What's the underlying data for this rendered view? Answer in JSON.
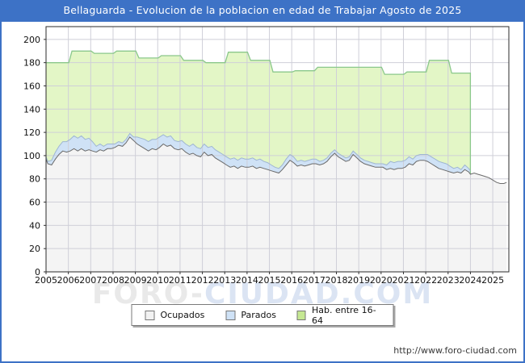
{
  "frame": {
    "title": "Bellaguarda - Evolucion de la poblacion en edad de Trabajar Agosto de 2025",
    "url": "http://www.foro-ciudad.com",
    "watermark_part1": "FORO-",
    "watermark_part2": "CIUDAD.COM",
    "titlebar_bg": "#3d72c6",
    "frame_border": "#3d72c6"
  },
  "legend": {
    "items": [
      {
        "label": "Ocupados",
        "swatch": "#f2f2f2"
      },
      {
        "label": "Parados",
        "swatch": "#cfe2f6"
      },
      {
        "label": "Hab. entre 16-64",
        "swatch": "#c6e893"
      }
    ]
  },
  "chart_data": {
    "type": "area",
    "title": "Bellaguarda - Evolucion de la poblacion en edad de Trabajar Agosto de 2025",
    "xlabel": "",
    "ylabel": "",
    "grid": true,
    "legend_position": "bottom",
    "x_ticks": [
      2005,
      2006,
      2007,
      2008,
      2009,
      2010,
      2011,
      2012,
      2013,
      2014,
      2015,
      2016,
      2017,
      2018,
      2019,
      2020,
      2021,
      2022,
      2023,
      2024,
      2025
    ],
    "y_ticks": [
      0,
      20,
      40,
      60,
      80,
      100,
      120,
      140,
      160,
      180,
      200
    ],
    "x_range": [
      2005,
      2025.72
    ],
    "y_range": [
      0,
      211
    ],
    "colors": {
      "hab_fill": "#e3f6c6",
      "hab_line": "#8bc88b",
      "parados_fill": "#cfe2f6",
      "parados_line": "#9fb6d2",
      "ocupados_fill": "#f4f4f4",
      "ocupados_line": "#6b6b6b",
      "gridline": "#cfcfd8",
      "plot_border": "#2b2b2b"
    },
    "series": [
      {
        "name": "Hab. entre 16-64",
        "style": "step_area_annual",
        "annual_steps": [
          [
            2005,
            180
          ],
          [
            2006,
            190
          ],
          [
            2007,
            188
          ],
          [
            2008,
            190
          ],
          [
            2009,
            184
          ],
          [
            2010,
            186
          ],
          [
            2011,
            182
          ],
          [
            2012,
            180
          ],
          [
            2013,
            189
          ],
          [
            2014,
            182
          ],
          [
            2015,
            172
          ],
          [
            2016,
            173
          ],
          [
            2017,
            176
          ],
          [
            2018,
            176
          ],
          [
            2019,
            176
          ],
          [
            2020,
            170
          ],
          [
            2021,
            172
          ],
          [
            2022,
            182
          ],
          [
            2023,
            171
          ]
        ],
        "ends_at": 2024.0,
        "end_drop_to": 84
      },
      {
        "name": "Parados",
        "style": "stacked_band_top",
        "points": [
          [
            2005.0,
            99
          ],
          [
            2005.08,
            95
          ],
          [
            2005.25,
            96
          ],
          [
            2005.42,
            103
          ],
          [
            2005.58,
            108
          ],
          [
            2005.75,
            112
          ],
          [
            2005.92,
            112
          ],
          [
            2006.08,
            114
          ],
          [
            2006.25,
            117
          ],
          [
            2006.42,
            115
          ],
          [
            2006.58,
            117
          ],
          [
            2006.75,
            114
          ],
          [
            2006.92,
            115
          ],
          [
            2007.08,
            112
          ],
          [
            2007.25,
            108
          ],
          [
            2007.42,
            110
          ],
          [
            2007.58,
            108
          ],
          [
            2007.75,
            110
          ],
          [
            2007.92,
            110
          ],
          [
            2008.08,
            110
          ],
          [
            2008.25,
            112
          ],
          [
            2008.42,
            111
          ],
          [
            2008.58,
            114
          ],
          [
            2008.75,
            119
          ],
          [
            2008.92,
            116
          ],
          [
            2009.08,
            116
          ],
          [
            2009.25,
            115
          ],
          [
            2009.42,
            114
          ],
          [
            2009.58,
            112
          ],
          [
            2009.75,
            114
          ],
          [
            2009.92,
            114
          ],
          [
            2010.08,
            116
          ],
          [
            2010.25,
            118
          ],
          [
            2010.42,
            116
          ],
          [
            2010.58,
            117
          ],
          [
            2010.75,
            113
          ],
          [
            2010.92,
            112
          ],
          [
            2011.08,
            113
          ],
          [
            2011.25,
            110
          ],
          [
            2011.42,
            108
          ],
          [
            2011.58,
            110
          ],
          [
            2011.75,
            107
          ],
          [
            2011.92,
            106
          ],
          [
            2012.08,
            110
          ],
          [
            2012.25,
            107
          ],
          [
            2012.42,
            108
          ],
          [
            2012.58,
            105
          ],
          [
            2012.75,
            103
          ],
          [
            2012.92,
            101
          ],
          [
            2013.08,
            99
          ],
          [
            2013.25,
            97
          ],
          [
            2013.42,
            98
          ],
          [
            2013.58,
            96
          ],
          [
            2013.75,
            98
          ],
          [
            2013.92,
            97
          ],
          [
            2014.08,
            97
          ],
          [
            2014.25,
            98
          ],
          [
            2014.42,
            96
          ],
          [
            2014.58,
            97
          ],
          [
            2014.75,
            95
          ],
          [
            2014.92,
            94
          ],
          [
            2015.08,
            92
          ],
          [
            2015.25,
            90
          ],
          [
            2015.42,
            89
          ],
          [
            2015.58,
            92
          ],
          [
            2015.75,
            97
          ],
          [
            2015.92,
            101
          ],
          [
            2016.08,
            99
          ],
          [
            2016.25,
            95
          ],
          [
            2016.42,
            96
          ],
          [
            2016.58,
            95
          ],
          [
            2016.75,
            96
          ],
          [
            2016.92,
            97
          ],
          [
            2017.08,
            97
          ],
          [
            2017.25,
            95
          ],
          [
            2017.42,
            96
          ],
          [
            2017.58,
            98
          ],
          [
            2017.75,
            102
          ],
          [
            2017.92,
            105
          ],
          [
            2018.08,
            102
          ],
          [
            2018.25,
            100
          ],
          [
            2018.42,
            98
          ],
          [
            2018.58,
            99
          ],
          [
            2018.75,
            104
          ],
          [
            2018.92,
            101
          ],
          [
            2019.08,
            98
          ],
          [
            2019.25,
            96
          ],
          [
            2019.42,
            95
          ],
          [
            2019.58,
            94
          ],
          [
            2019.75,
            93
          ],
          [
            2019.92,
            93
          ],
          [
            2020.08,
            93
          ],
          [
            2020.25,
            92
          ],
          [
            2020.42,
            95
          ],
          [
            2020.58,
            94
          ],
          [
            2020.75,
            95
          ],
          [
            2020.92,
            95
          ],
          [
            2021.08,
            96
          ],
          [
            2021.25,
            99
          ],
          [
            2021.42,
            97
          ],
          [
            2021.58,
            100
          ],
          [
            2021.75,
            101
          ],
          [
            2021.92,
            101
          ],
          [
            2022.08,
            101
          ],
          [
            2022.25,
            99
          ],
          [
            2022.42,
            97
          ],
          [
            2022.58,
            95
          ],
          [
            2022.75,
            94
          ],
          [
            2022.92,
            93
          ],
          [
            2023.08,
            91
          ],
          [
            2023.25,
            89
          ],
          [
            2023.42,
            90
          ],
          [
            2023.58,
            88
          ],
          [
            2023.75,
            92
          ],
          [
            2023.92,
            89
          ],
          [
            2024.0,
            87
          ]
        ]
      },
      {
        "name": "Ocupados",
        "style": "area_with_line",
        "points": [
          [
            2005.0,
            97
          ],
          [
            2005.08,
            93
          ],
          [
            2005.25,
            92
          ],
          [
            2005.42,
            97
          ],
          [
            2005.58,
            101
          ],
          [
            2005.75,
            104
          ],
          [
            2005.92,
            103
          ],
          [
            2006.08,
            104
          ],
          [
            2006.25,
            106
          ],
          [
            2006.42,
            104
          ],
          [
            2006.58,
            106
          ],
          [
            2006.75,
            104
          ],
          [
            2006.92,
            105
          ],
          [
            2007.08,
            104
          ],
          [
            2007.25,
            103
          ],
          [
            2007.42,
            105
          ],
          [
            2007.58,
            104
          ],
          [
            2007.75,
            106
          ],
          [
            2007.92,
            106
          ],
          [
            2008.08,
            107
          ],
          [
            2008.25,
            109
          ],
          [
            2008.42,
            108
          ],
          [
            2008.58,
            111
          ],
          [
            2008.75,
            116
          ],
          [
            2008.92,
            113
          ],
          [
            2009.08,
            110
          ],
          [
            2009.25,
            108
          ],
          [
            2009.42,
            106
          ],
          [
            2009.58,
            104
          ],
          [
            2009.75,
            106
          ],
          [
            2009.92,
            105
          ],
          [
            2010.08,
            107
          ],
          [
            2010.25,
            110
          ],
          [
            2010.42,
            108
          ],
          [
            2010.58,
            109
          ],
          [
            2010.75,
            106
          ],
          [
            2010.92,
            105
          ],
          [
            2011.08,
            106
          ],
          [
            2011.25,
            103
          ],
          [
            2011.42,
            101
          ],
          [
            2011.58,
            102
          ],
          [
            2011.75,
            100
          ],
          [
            2011.92,
            99
          ],
          [
            2012.08,
            103
          ],
          [
            2012.25,
            100
          ],
          [
            2012.42,
            101
          ],
          [
            2012.58,
            98
          ],
          [
            2012.75,
            96
          ],
          [
            2012.92,
            94
          ],
          [
            2013.08,
            92
          ],
          [
            2013.25,
            90
          ],
          [
            2013.42,
            91
          ],
          [
            2013.58,
            89
          ],
          [
            2013.75,
            91
          ],
          [
            2013.92,
            90
          ],
          [
            2014.08,
            90
          ],
          [
            2014.25,
            91
          ],
          [
            2014.42,
            89
          ],
          [
            2014.58,
            90
          ],
          [
            2014.75,
            89
          ],
          [
            2014.92,
            88
          ],
          [
            2015.08,
            87
          ],
          [
            2015.25,
            86
          ],
          [
            2015.42,
            85
          ],
          [
            2015.58,
            88
          ],
          [
            2015.75,
            92
          ],
          [
            2015.92,
            96
          ],
          [
            2016.08,
            94
          ],
          [
            2016.25,
            91
          ],
          [
            2016.42,
            92
          ],
          [
            2016.58,
            91
          ],
          [
            2016.75,
            92
          ],
          [
            2016.92,
            93
          ],
          [
            2017.08,
            93
          ],
          [
            2017.25,
            92
          ],
          [
            2017.42,
            93
          ],
          [
            2017.58,
            95
          ],
          [
            2017.75,
            99
          ],
          [
            2017.92,
            102
          ],
          [
            2018.08,
            99
          ],
          [
            2018.25,
            97
          ],
          [
            2018.42,
            95
          ],
          [
            2018.58,
            96
          ],
          [
            2018.75,
            101
          ],
          [
            2018.92,
            98
          ],
          [
            2019.08,
            95
          ],
          [
            2019.25,
            93
          ],
          [
            2019.42,
            92
          ],
          [
            2019.58,
            91
          ],
          [
            2019.75,
            90
          ],
          [
            2019.92,
            90
          ],
          [
            2020.08,
            90
          ],
          [
            2020.25,
            88
          ],
          [
            2020.42,
            89
          ],
          [
            2020.58,
            88
          ],
          [
            2020.75,
            89
          ],
          [
            2020.92,
            89
          ],
          [
            2021.08,
            90
          ],
          [
            2021.25,
            93
          ],
          [
            2021.42,
            92
          ],
          [
            2021.58,
            95
          ],
          [
            2021.75,
            96
          ],
          [
            2021.92,
            96
          ],
          [
            2022.08,
            95
          ],
          [
            2022.25,
            93
          ],
          [
            2022.42,
            91
          ],
          [
            2022.58,
            89
          ],
          [
            2022.75,
            88
          ],
          [
            2022.92,
            87
          ],
          [
            2023.08,
            86
          ],
          [
            2023.25,
            85
          ],
          [
            2023.42,
            86
          ],
          [
            2023.58,
            85
          ],
          [
            2023.75,
            88
          ],
          [
            2023.92,
            86
          ],
          [
            2024.0,
            84
          ],
          [
            2024.17,
            85
          ],
          [
            2024.33,
            84
          ],
          [
            2024.5,
            83
          ],
          [
            2024.67,
            82
          ],
          [
            2024.83,
            81
          ],
          [
            2025.0,
            79
          ],
          [
            2025.17,
            77
          ],
          [
            2025.33,
            76
          ],
          [
            2025.5,
            76
          ],
          [
            2025.62,
            77
          ]
        ]
      }
    ]
  }
}
